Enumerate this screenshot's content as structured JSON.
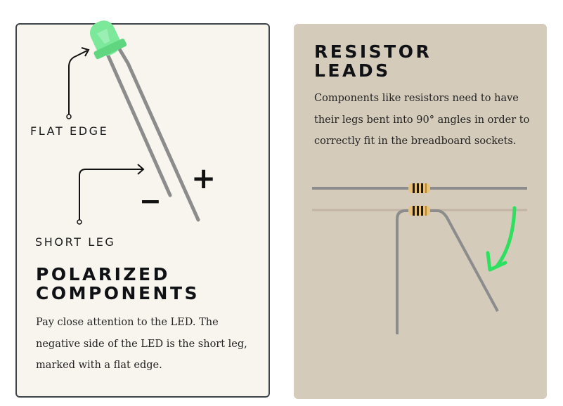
{
  "left_card": {
    "labels": {
      "flat_edge": "FLAT EDGE",
      "short_leg": "SHORT LEG",
      "minus": "−",
      "plus": "+"
    },
    "title_line1": "POLARIZED",
    "title_line2": "COMPONENTS",
    "body_lines": [
      "Pay close attention to the LED. The",
      "negative side of the LED is the short leg,",
      "marked with a flat edge."
    ]
  },
  "right_card": {
    "title_line1": "RESISTOR",
    "title_line2": "LEADS",
    "body_lines": [
      "Components like resistors need to have",
      "their legs bent into 90° angles in order to",
      "correctly fit in the breadboard sockets."
    ]
  },
  "colors": {
    "led": "#6fe08a",
    "leg": "#8c8c8c",
    "arrow": "#2fe060",
    "left_card_bg": "#f8f5ee",
    "right_card_bg": "#d4cbbb"
  }
}
